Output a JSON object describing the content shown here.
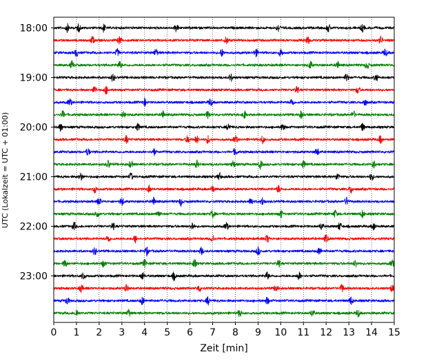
{
  "chart_data": {
    "type": "line",
    "title": "",
    "xlabel": "Zeit  [min]",
    "ylabel": "UTC (Lokalzeit = UTC + 01:00)",
    "xlim": [
      0,
      15
    ],
    "x_ticks": [
      "0",
      "1",
      "2",
      "3",
      "4",
      "5",
      "6",
      "7",
      "8",
      "9",
      "10",
      "11",
      "12",
      "13",
      "14",
      "15"
    ],
    "y_time_ticks": [
      "18:00",
      "19:00",
      "20:00",
      "21:00",
      "22:00",
      "23:00"
    ],
    "grid": "vertical dotted lines at each minute",
    "trace_interval_minutes": 15,
    "start_time": "18:00",
    "end_time": "23:45",
    "color_cycle": [
      "#000000",
      "#ff0000",
      "#0000ff",
      "#008000"
    ],
    "traces": [
      {
        "start": "18:00",
        "color": "#000000",
        "spikes_min": [
          0.6,
          1.1,
          2.2,
          5.4,
          9.9,
          12.1,
          13.6
        ]
      },
      {
        "start": "18:15",
        "color": "#ff0000",
        "spikes_min": [
          1.7,
          2.9,
          7.6,
          11.2,
          14.4
        ]
      },
      {
        "start": "18:30",
        "color": "#0000ff",
        "spikes_min": [
          1.0,
          2.8,
          4.5,
          7.4,
          8.9,
          10.0,
          14.6
        ]
      },
      {
        "start": "18:45",
        "color": "#008000",
        "spikes_min": [
          0.8,
          2.9,
          11.3,
          12.5,
          13.8
        ]
      },
      {
        "start": "19:00",
        "color": "#000000",
        "spikes_min": [
          2.6,
          7.8,
          12.9,
          14.2
        ]
      },
      {
        "start": "19:15",
        "color": "#ff0000",
        "spikes_min": [
          1.8,
          2.3,
          10.7,
          13.4
        ]
      },
      {
        "start": "19:30",
        "color": "#0000ff",
        "spikes_min": [
          0.7,
          4.0,
          6.9,
          10.5,
          13.7
        ]
      },
      {
        "start": "19:45",
        "color": "#008000",
        "spikes_min": [
          0.4,
          3.1,
          4.8,
          6.8,
          8.4,
          10.9,
          13.2
        ]
      },
      {
        "start": "20:00",
        "color": "#000000",
        "spikes_min": [
          0.3,
          3.7,
          7.7,
          10.1,
          13.6
        ]
      },
      {
        "start": "20:15",
        "color": "#ff0000",
        "spikes_min": [
          3.2,
          5.9,
          6.3,
          6.8,
          8.0,
          9.2,
          14.4
        ]
      },
      {
        "start": "20:30",
        "color": "#0000ff",
        "spikes_min": [
          1.5,
          4.4,
          8.0,
          11.6
        ]
      },
      {
        "start": "20:45",
        "color": "#008000",
        "spikes_min": [
          2.4,
          3.4,
          6.3,
          7.9,
          9.1,
          11.0,
          14.1
        ]
      },
      {
        "start": "21:00",
        "color": "#000000",
        "spikes_min": [
          1.2,
          3.4,
          7.3,
          12.5,
          14.0
        ]
      },
      {
        "start": "21:15",
        "color": "#ff0000",
        "spikes_min": [
          1.8,
          4.2,
          7.0,
          9.9,
          13.1
        ]
      },
      {
        "start": "21:30",
        "color": "#0000ff",
        "spikes_min": [
          2.0,
          3.0,
          4.4,
          5.6,
          8.7,
          9.2,
          12.9
        ]
      },
      {
        "start": "21:45",
        "color": "#008000",
        "spikes_min": [
          1.9,
          4.6,
          7.0,
          10.0,
          12.4,
          13.6
        ]
      },
      {
        "start": "22:00",
        "color": "#000000",
        "spikes_min": [
          0.9,
          2.6,
          6.1,
          7.6,
          11.8,
          12.6,
          14.1
        ]
      },
      {
        "start": "22:15",
        "color": "#ff0000",
        "spikes_min": [
          2.4,
          3.6,
          7.0,
          9.4,
          12.0
        ]
      },
      {
        "start": "22:30",
        "color": "#0000ff",
        "spikes_min": [
          1.8,
          4.1,
          6.5,
          9.0,
          11.7
        ]
      },
      {
        "start": "22:45",
        "color": "#008000",
        "spikes_min": [
          0.5,
          2.2,
          4.0,
          6.2,
          9.9,
          13.3,
          14.9
        ]
      },
      {
        "start": "23:00",
        "color": "#000000",
        "spikes_min": [
          1.3,
          3.9,
          5.3,
          9.4,
          10.8
        ]
      },
      {
        "start": "23:15",
        "color": "#ff0000",
        "spikes_min": [
          1.2,
          3.2,
          6.4,
          9.8,
          12.7,
          14.9
        ]
      },
      {
        "start": "23:30",
        "color": "#0000ff",
        "spikes_min": [
          0.6,
          3.9,
          6.8,
          9.4,
          13.1
        ]
      },
      {
        "start": "23:45",
        "color": "#008000",
        "spikes_min": [
          1.0,
          3.3,
          8.2,
          11.4,
          13.4
        ]
      }
    ]
  }
}
